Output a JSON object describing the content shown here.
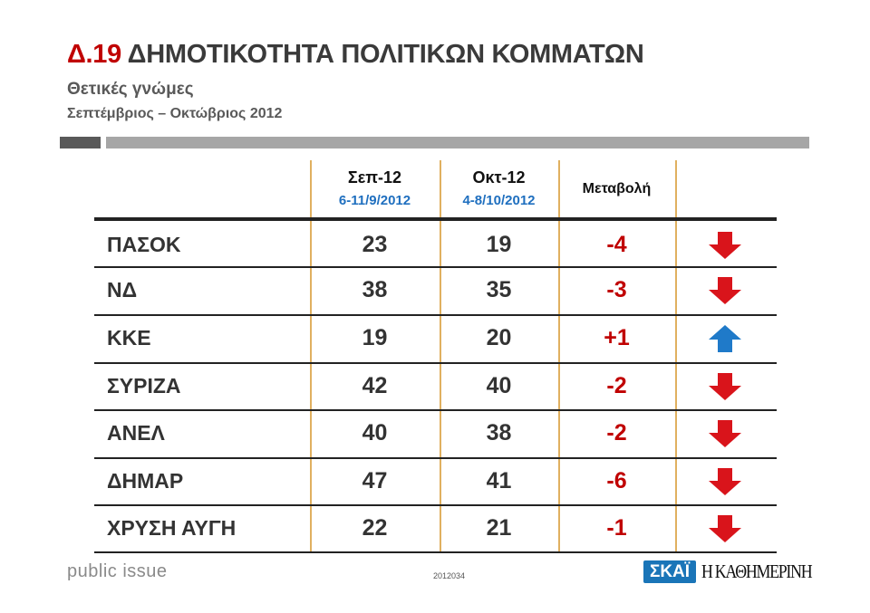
{
  "header": {
    "code": "Δ.19",
    "title": "ΔΗΜΟΤΙΚΟΤΗΤΑ ΠΟΛΙΤΙΚΩΝ ΚΟΜΜΑΤΩΝ",
    "subtitle": "Θετικές γνώμες",
    "period": "Σεπτέμβριος – Οκτώβριος 2012"
  },
  "table": {
    "columns": [
      {
        "label": "Σεπ-12",
        "dates": "6-11/9/2012"
      },
      {
        "label": "Οκτ-12",
        "dates": "4-8/10/2012"
      },
      {
        "label": "Μεταβολή"
      }
    ],
    "rows": [
      {
        "party": "ΠΑΣΟΚ",
        "sep": "23",
        "oct": "19",
        "change": "-4",
        "trend": "down"
      },
      {
        "party": "ΝΔ",
        "sep": "38",
        "oct": "35",
        "change": "-3",
        "trend": "down"
      },
      {
        "party": "ΚΚΕ",
        "sep": "19",
        "oct": "20",
        "change": "+1",
        "trend": "up"
      },
      {
        "party": "ΣΥΡΙΖΑ",
        "sep": "42",
        "oct": "40",
        "change": "-2",
        "trend": "down"
      },
      {
        "party": "ΑΝΕΛ",
        "sep": "40",
        "oct": "38",
        "change": "-2",
        "trend": "down"
      },
      {
        "party": "ΔΗΜΑΡ",
        "sep": "47",
        "oct": "41",
        "change": "-6",
        "trend": "down"
      },
      {
        "party": "ΧΡΥΣΗ ΑΥΓΗ",
        "sep": "22",
        "oct": "21",
        "change": "-1",
        "trend": "down"
      }
    ],
    "colors": {
      "down": "#d9141b",
      "up": "#1f7ac9",
      "change": "#c00000",
      "dates": "#1f6fbf"
    }
  },
  "footer": {
    "brand": "public issue",
    "code": "2012034",
    "logo_skai": "ΣΚΑΪ",
    "logo_kathimerini": "Η ΚΑΘΗΜΕΡΙΝΗ"
  }
}
